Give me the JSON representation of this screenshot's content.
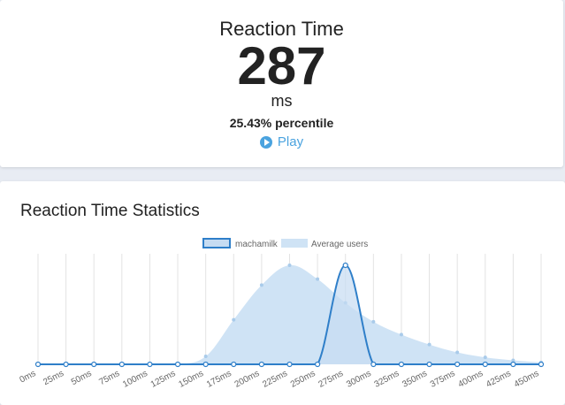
{
  "result": {
    "title": "Reaction Time",
    "value": "287",
    "unit": "ms",
    "percentile": "25.43% percentile",
    "play_label": "Play"
  },
  "stats": {
    "title": "Reaction Time Statistics"
  },
  "colors": {
    "user_line": "#2f7fc9",
    "user_fill": "#c6dcf2",
    "avg_fill": "#cfe3f5",
    "avg_point": "#a9cbea",
    "accent": "#4aa3df"
  },
  "chart_data": {
    "type": "area",
    "x": [
      "0ms",
      "25ms",
      "50ms",
      "75ms",
      "100ms",
      "125ms",
      "150ms",
      "175ms",
      "200ms",
      "225ms",
      "250ms",
      "275ms",
      "300ms",
      "325ms",
      "350ms",
      "375ms",
      "400ms",
      "425ms",
      "450ms"
    ],
    "series": [
      {
        "name": "machamilk",
        "values": [
          0,
          0,
          0,
          0,
          0,
          0,
          0,
          0,
          0,
          0,
          0,
          100,
          0,
          0,
          0,
          0,
          0,
          0,
          0
        ]
      },
      {
        "name": "Average users",
        "values": [
          0,
          0,
          0,
          0,
          0,
          0,
          8,
          45,
          80,
          100,
          86,
          62,
          43,
          30,
          20,
          12,
          7,
          4,
          2
        ]
      }
    ],
    "legend_position": "top",
    "grid": true
  }
}
